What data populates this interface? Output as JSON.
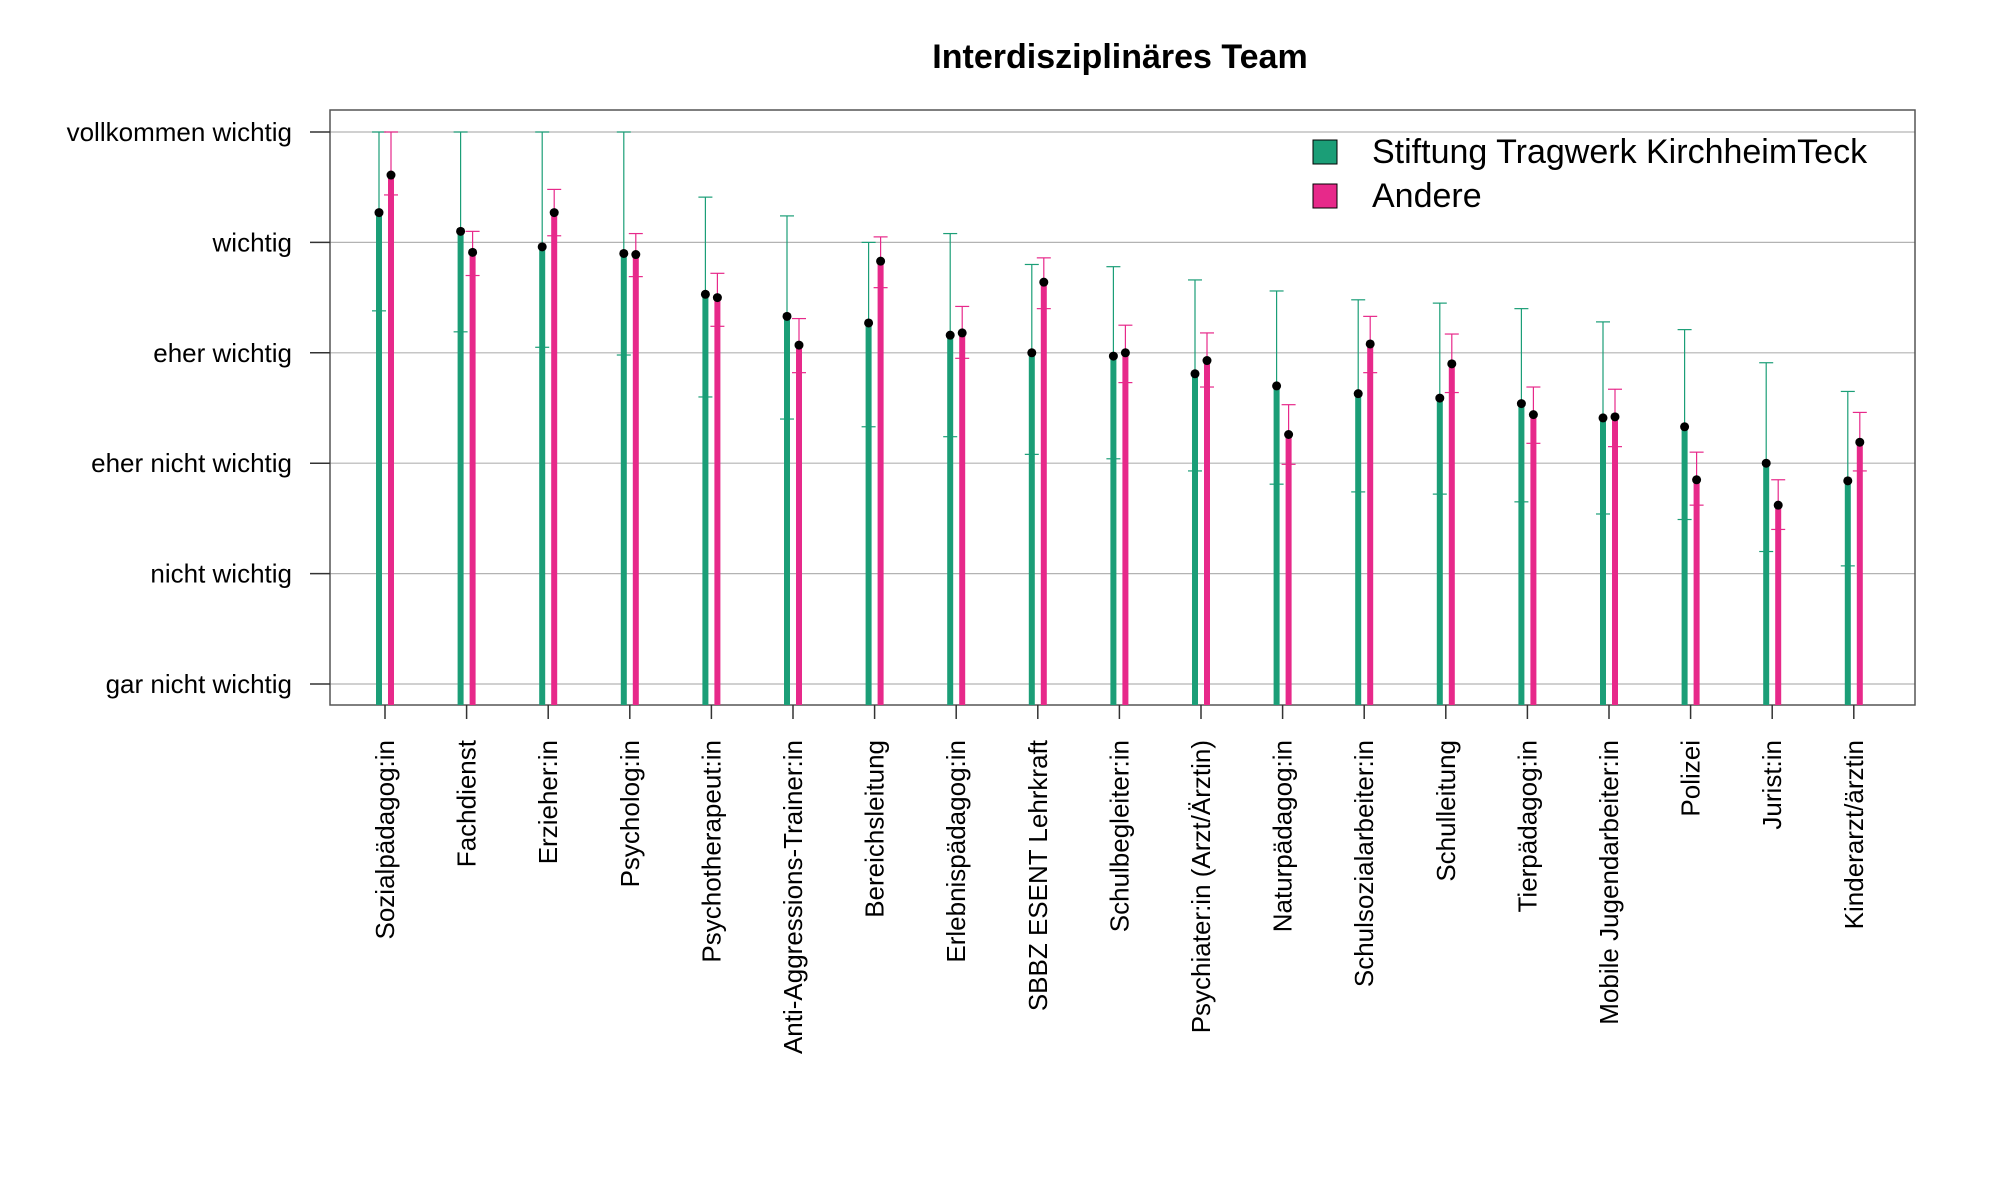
{
  "chart_data": {
    "type": "bar",
    "title": "Interdisziplinäres Team",
    "xlabel": "",
    "ylabel": "",
    "ylim": [
      0,
      5
    ],
    "y_tick_labels": [
      "gar nicht wichtig",
      "nicht wichtig",
      "eher nicht wichtig",
      "eher wichtig",
      "wichtig",
      "vollkommen wichtig"
    ],
    "grid": "horizontal",
    "legend_position": "top-right",
    "categories": [
      "Sozialpädagog:in",
      "Fachdienst",
      "Erzieher:in",
      "Psycholog:in",
      "Psychotherapeut:in",
      "Anti-Aggressions-Trainer:in",
      "Bereichsleitung",
      "Erlebnispädagog:in",
      "SBBZ ESENT Lehrkraft",
      "Schulbegleiter:in",
      "Psychiater:in (Arzt/Ärztin)",
      "Naturpädagog:in",
      "Schulsozialarbeiter:in",
      "Schulleitung",
      "Tierpädagog:in",
      "Mobile Jugendarbeiter:in",
      "Polizei",
      "Jurist:in",
      "Kinderarzt/ärztin"
    ],
    "series": [
      {
        "name": "Stiftung Tragwerk KirchheimTeck",
        "color": "#1b9e77",
        "values": [
          4.27,
          4.1,
          3.96,
          3.9,
          3.53,
          3.33,
          3.27,
          3.16,
          3.0,
          2.97,
          2.81,
          2.7,
          2.63,
          2.59,
          2.54,
          2.41,
          2.33,
          2.0,
          1.84
        ],
        "err_low": [
          3.38,
          3.19,
          3.05,
          2.98,
          2.6,
          2.4,
          2.33,
          2.24,
          2.08,
          2.04,
          1.93,
          1.81,
          1.74,
          1.72,
          1.65,
          1.54,
          1.49,
          1.2,
          1.07
        ],
        "err_high": [
          5.0,
          5.0,
          5.0,
          5.0,
          4.41,
          4.24,
          4.0,
          4.08,
          3.8,
          3.78,
          3.66,
          3.56,
          3.48,
          3.45,
          3.4,
          3.28,
          3.21,
          2.91,
          2.65
        ]
      },
      {
        "name": "Andere",
        "color": "#e7298a",
        "values": [
          4.61,
          3.91,
          4.27,
          3.89,
          3.5,
          3.07,
          3.83,
          3.18,
          3.64,
          3.0,
          2.93,
          2.26,
          3.08,
          2.9,
          2.44,
          2.42,
          1.85,
          1.62,
          2.19
        ],
        "err_low": [
          4.43,
          3.7,
          4.06,
          3.69,
          3.24,
          2.82,
          3.59,
          2.95,
          3.4,
          2.73,
          2.69,
          1.99,
          2.82,
          2.64,
          2.18,
          2.15,
          1.62,
          1.4,
          1.93
        ],
        "err_high": [
          5.0,
          4.1,
          4.48,
          4.08,
          3.72,
          3.31,
          4.05,
          3.42,
          3.86,
          3.25,
          3.18,
          2.53,
          3.33,
          3.17,
          2.69,
          2.67,
          2.1,
          1.85,
          2.46
        ]
      }
    ]
  }
}
